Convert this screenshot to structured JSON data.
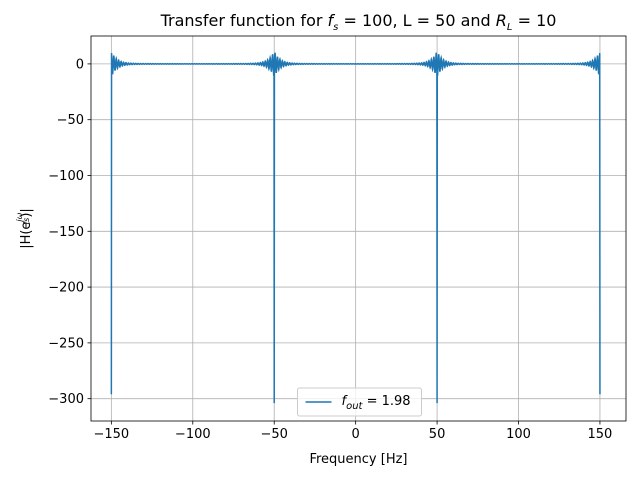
{
  "chart_data": {
    "type": "line",
    "title": {
      "prefix": "Transfer function for ",
      "fs_symbol": "f",
      "fs_sub": "s",
      "fs_value": " = 100, L = 50 and ",
      "rl_symbol": "R",
      "rl_sub": "L",
      "rl_value": " = 10"
    },
    "xlabel": "Frequency [Hz]",
    "ylabel": {
      "prefix": "|H(e",
      "exponent_top": "jω",
      "exponent_bottom": "fs",
      "suffix": ")|"
    },
    "xlim": [
      -162.5,
      166
    ],
    "ylim": [
      -320,
      25
    ],
    "xticks": [
      -150,
      -100,
      -50,
      0,
      50,
      100,
      150
    ],
    "xtick_labels": [
      "−150",
      "−100",
      "−50",
      "0",
      "50",
      "100",
      "150"
    ],
    "yticks": [
      0,
      -50,
      -100,
      -150,
      -200,
      -250,
      -300
    ],
    "ytick_labels": [
      "0",
      "−50",
      "−100",
      "−150",
      "−200",
      "−250",
      "−300"
    ],
    "grid": true,
    "legend_position": "lower center",
    "series": [
      {
        "name": {
          "symbol": "f",
          "sub": "out",
          "value": " = 1.98"
        },
        "color": "#1f77b4",
        "notch_frequencies": [
          -150,
          -50,
          50,
          150
        ],
        "notch_minima": [
          -296,
          -304,
          -304,
          -296
        ],
        "passband_level": 0,
        "ripple_peak": 11
      }
    ]
  }
}
